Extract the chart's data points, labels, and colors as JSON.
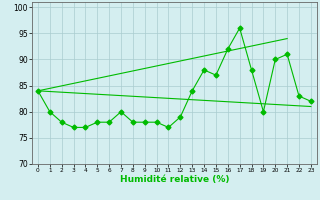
{
  "xlabel": "Humidité relative (%)",
  "background_color": "#d4eef0",
  "grid_color": "#aaccd0",
  "line_color": "#00bb00",
  "xlim": [
    -0.5,
    23.5
  ],
  "ylim": [
    70,
    101
  ],
  "yticks": [
    70,
    75,
    80,
    85,
    90,
    95,
    100
  ],
  "xticks": [
    0,
    1,
    2,
    3,
    4,
    5,
    6,
    7,
    8,
    9,
    10,
    11,
    12,
    13,
    14,
    15,
    16,
    17,
    18,
    19,
    20,
    21,
    22,
    23
  ],
  "xtick_labels": [
    "0",
    "1",
    "2",
    "3",
    "4",
    "5",
    "6",
    "7",
    "8",
    "9",
    "10",
    "11",
    "12",
    "13",
    "14",
    "15",
    "16",
    "17",
    "18",
    "19",
    "20",
    "21",
    "22",
    "23"
  ],
  "series1": [
    84,
    80,
    78,
    77,
    77,
    78,
    78,
    80,
    78,
    78,
    78,
    77,
    79,
    84,
    88,
    87,
    92,
    96,
    88,
    80,
    90,
    91,
    83,
    82
  ],
  "trend1_x": [
    0,
    23
  ],
  "trend1_y": [
    84,
    81
  ],
  "trend2_x": [
    0,
    21
  ],
  "trend2_y": [
    84,
    94
  ],
  "marker_size": 2.5,
  "line_width": 0.8
}
